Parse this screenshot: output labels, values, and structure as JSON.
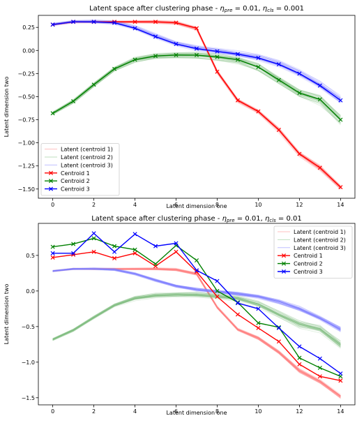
{
  "chart_data": [
    {
      "type": "line",
      "title_base": "Latent space after clustering phase - ",
      "eta_pre_value": "= 0.01, ",
      "eta_cls_value": "= 0.001",
      "xlabel": "Latent dimension one",
      "ylabel": "Latent dimension two",
      "xlim": [
        -0.7,
        14.7
      ],
      "ylim": [
        -1.6,
        0.38
      ],
      "xticks": [
        0,
        2,
        4,
        6,
        8,
        10,
        12,
        14
      ],
      "yticks": [
        0.25,
        0.0,
        -0.25,
        -0.5,
        -0.75,
        -1.0,
        -1.25,
        -1.5
      ],
      "ytick_labels": [
        "0.25",
        "0.00",
        "−0.25",
        "−0.50",
        "−0.75",
        "−1.00",
        "−1.25",
        "−1.50"
      ],
      "legend_position": "lower-left",
      "x": [
        0,
        1,
        2,
        3,
        4,
        5,
        6,
        7,
        8,
        9,
        10,
        11,
        12,
        13,
        14
      ],
      "latent_series": [
        {
          "name": "Latent (centroid 1)",
          "color": "#ff8080"
        },
        {
          "name": "Latent (centroid 2)",
          "color": "#80c080"
        },
        {
          "name": "Latent (centroid 3)",
          "color": "#8080ff"
        }
      ],
      "series": [
        {
          "name": "Centroid 1",
          "color": "#ff0000",
          "values": [
            0.28,
            0.31,
            0.31,
            0.31,
            0.31,
            0.31,
            0.3,
            0.24,
            -0.23,
            -0.54,
            -0.66,
            -0.86,
            -1.12,
            -1.27,
            -1.48
          ]
        },
        {
          "name": "Centroid 2",
          "color": "#008000",
          "values": [
            -0.68,
            -0.55,
            -0.37,
            -0.2,
            -0.1,
            -0.06,
            -0.05,
            -0.05,
            -0.07,
            -0.1,
            -0.18,
            -0.32,
            -0.46,
            -0.53,
            -0.75
          ]
        },
        {
          "name": "Centroid 3",
          "color": "#0000ff",
          "values": [
            0.28,
            0.31,
            0.31,
            0.3,
            0.24,
            0.15,
            0.07,
            0.02,
            -0.01,
            -0.04,
            -0.08,
            -0.15,
            -0.25,
            -0.38,
            -0.54
          ]
        }
      ]
    },
    {
      "type": "line",
      "title_base": "Latent space after clustering phase - ",
      "eta_pre_value": "= 0.01, ",
      "eta_cls_value": "= 0.01",
      "xlabel": "Latent dimension one",
      "ylabel": "Latent dimension two",
      "xlim": [
        -0.7,
        14.7
      ],
      "ylim": [
        -1.6,
        0.95
      ],
      "xticks": [
        0,
        2,
        4,
        6,
        8,
        10,
        12,
        14
      ],
      "yticks": [
        0.5,
        0.0,
        -0.5,
        -1.0,
        -1.5
      ],
      "ytick_labels": [
        "0.5",
        "0.0",
        "−0.5",
        "−1.0",
        "−1.5"
      ],
      "legend_position": "upper-right",
      "x": [
        0,
        1,
        2,
        3,
        4,
        5,
        6,
        7,
        8,
        9,
        10,
        11,
        12,
        13,
        14
      ],
      "latent_series": [
        {
          "name": "Latent (centroid 1)",
          "color": "#ff8080"
        },
        {
          "name": "Latent (centroid 2)",
          "color": "#80c080"
        },
        {
          "name": "Latent (centroid 3)",
          "color": "#8080ff"
        }
      ],
      "latent_means": [
        [
          0.28,
          0.31,
          0.31,
          0.31,
          0.31,
          0.31,
          0.3,
          0.24,
          -0.23,
          -0.54,
          -0.66,
          -0.86,
          -1.12,
          -1.27,
          -1.48
        ],
        [
          -0.68,
          -0.55,
          -0.37,
          -0.2,
          -0.1,
          -0.06,
          -0.05,
          -0.05,
          -0.07,
          -0.1,
          -0.18,
          -0.32,
          -0.46,
          -0.53,
          -0.75
        ],
        [
          0.28,
          0.31,
          0.31,
          0.3,
          0.24,
          0.15,
          0.07,
          0.02,
          -0.01,
          -0.04,
          -0.08,
          -0.15,
          -0.25,
          -0.38,
          -0.54
        ]
      ],
      "series": [
        {
          "name": "Centroid 1",
          "color": "#ff0000",
          "values": [
            0.47,
            0.51,
            0.55,
            0.46,
            0.53,
            0.35,
            0.55,
            0.27,
            -0.08,
            -0.33,
            -0.52,
            -0.71,
            -1.03,
            -1.2,
            -1.26
          ]
        },
        {
          "name": "Centroid 2",
          "color": "#008000",
          "values": [
            0.62,
            0.66,
            0.74,
            0.63,
            0.58,
            0.38,
            0.64,
            0.43,
            0.0,
            -0.16,
            -0.45,
            -0.51,
            -0.94,
            -1.08,
            -1.2
          ]
        },
        {
          "name": "Centroid 3",
          "color": "#0000ff",
          "values": [
            0.53,
            0.53,
            0.81,
            0.55,
            0.8,
            0.63,
            0.67,
            0.29,
            0.14,
            -0.17,
            -0.25,
            -0.52,
            -0.78,
            -0.95,
            -1.16
          ]
        }
      ]
    }
  ]
}
